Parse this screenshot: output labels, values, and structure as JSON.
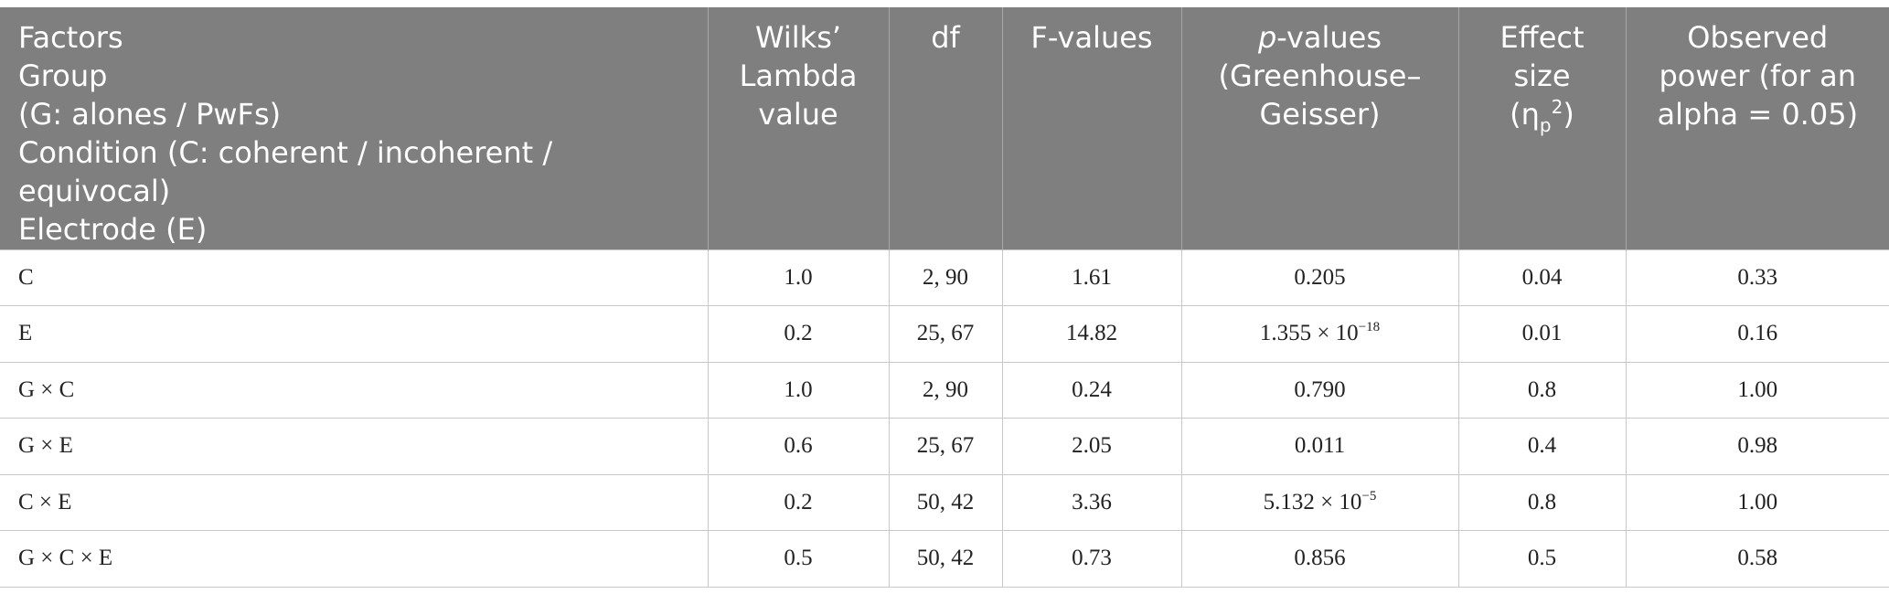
{
  "table": {
    "header": {
      "factors_lines": [
        "Factors",
        "Group",
        "(G: alones / PwFs)",
        "Condition (C: coherent / incoherent /",
        "equivocal)",
        "Electrode (E)"
      ],
      "wilks_lines": [
        "Wilks’",
        "Lambda",
        "value"
      ],
      "df": "df",
      "f_values": "F-values",
      "p_values": {
        "p": "p",
        "rest": "-values",
        "line2": "(Greenhouse–",
        "line3": "Geisser)"
      },
      "effect_size": {
        "line1": "Effect",
        "line2": "size",
        "open": "(",
        "eta": "η",
        "sub": "p",
        "sup": "2",
        "close": ")"
      },
      "observed_power_lines": [
        "Observed",
        "power (for an",
        "alpha = 0.05)"
      ]
    },
    "rows": [
      {
        "factor": "C",
        "wilks": "1.0",
        "df": "2, 90",
        "f": "1.61",
        "p_base": "0.205",
        "p_exp": "",
        "effect": "0.04",
        "power": "0.33"
      },
      {
        "factor": "E",
        "wilks": "0.2",
        "df": "25, 67",
        "f": "14.82",
        "p_base": "1.355 × 10",
        "p_exp": "−18",
        "effect": "0.01",
        "power": "0.16"
      },
      {
        "factor": "G × C",
        "wilks": "1.0",
        "df": "2, 90",
        "f": "0.24",
        "p_base": "0.790",
        "p_exp": "",
        "effect": "0.8",
        "power": "1.00"
      },
      {
        "factor": "G × E",
        "wilks": "0.6",
        "df": "25, 67",
        "f": "2.05",
        "p_base": "0.011",
        "p_exp": "",
        "effect": "0.4",
        "power": "0.98"
      },
      {
        "factor": "C × E",
        "wilks": "0.2",
        "df": "50, 42",
        "f": "3.36",
        "p_base": "5.132 × 10",
        "p_exp": "−5",
        "effect": "0.8",
        "power": "1.00"
      },
      {
        "factor": "G × C × E",
        "wilks": "0.5",
        "df": "50, 42",
        "f": "0.73",
        "p_base": "0.856",
        "p_exp": "",
        "effect": "0.5",
        "power": "0.58"
      }
    ],
    "colors": {
      "header_bg": "#7f7f7f",
      "header_text": "#ffffff",
      "grid_line": "#c8c8c8"
    }
  }
}
